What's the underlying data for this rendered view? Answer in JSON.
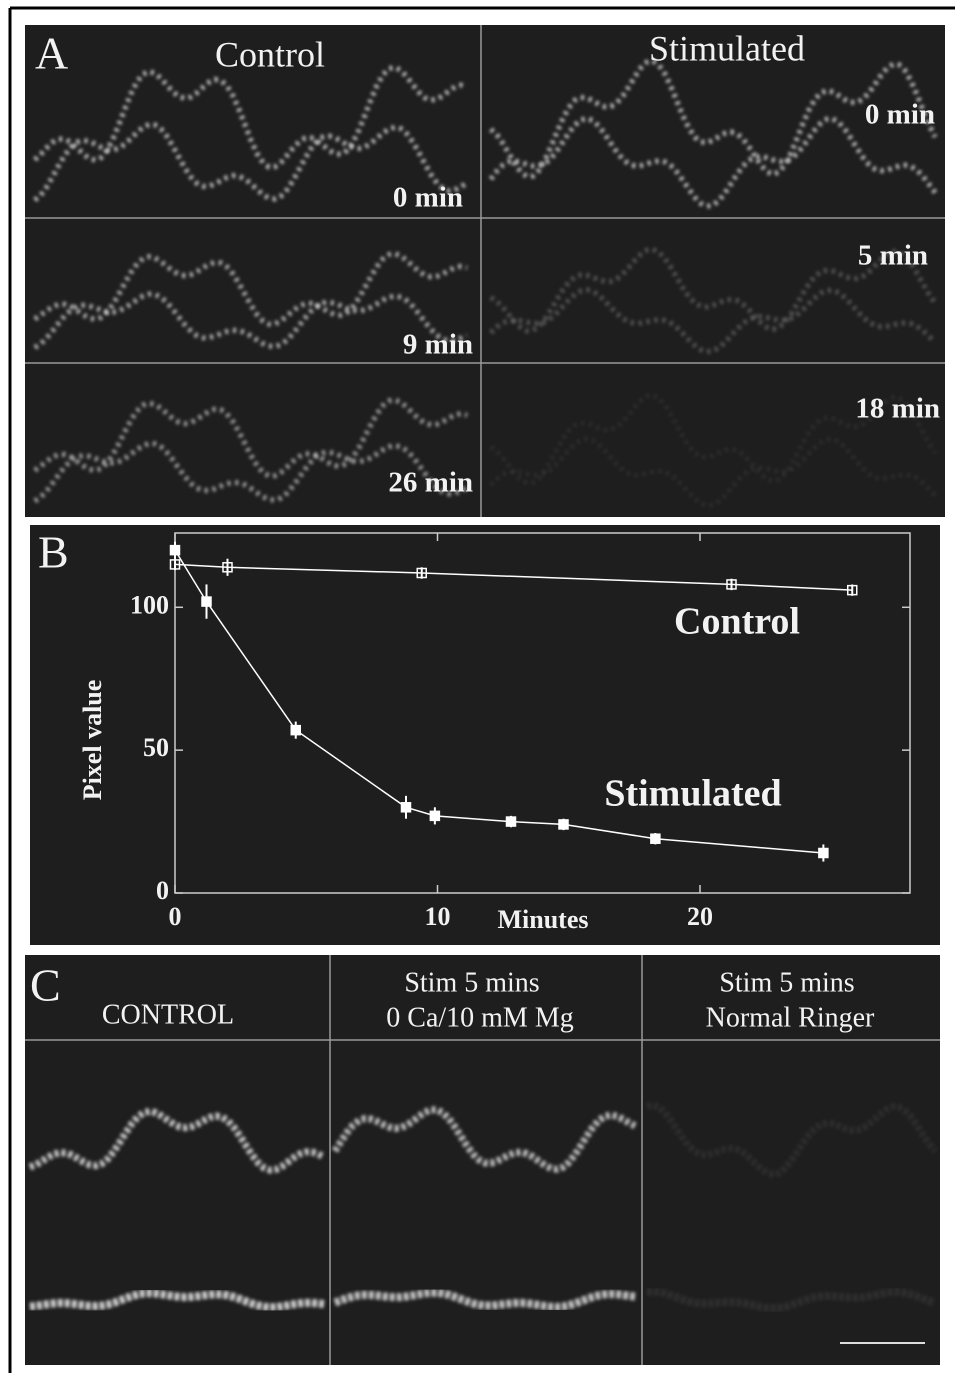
{
  "panel_a": {
    "label": "A",
    "columns": [
      "Control",
      "Stimulated"
    ],
    "control_times": [
      "0 min",
      "9 min",
      "26 min"
    ],
    "stimulated_times": [
      "0 min",
      "5 min",
      "18 min"
    ]
  },
  "chart_data": {
    "type": "line",
    "panel_label": "B",
    "x_label": "Minutes",
    "y_label": "Pixel value",
    "xlim": [
      0,
      28
    ],
    "ylim": [
      0,
      126
    ],
    "xticks": [
      0,
      10,
      20
    ],
    "yticks": [
      0,
      50,
      100
    ],
    "grid": false,
    "series": [
      {
        "name": "Control",
        "color": "#ffffff",
        "x": [
          0,
          2.0,
          9.4,
          21.2,
          25.8
        ],
        "values": [
          115,
          114,
          112,
          108,
          106
        ],
        "errors": [
          2,
          3,
          2,
          2,
          2
        ]
      },
      {
        "name": "Stimulated",
        "color": "#ffffff",
        "x": [
          0,
          1.2,
          4.6,
          8.8,
          9.9,
          12.8,
          14.8,
          18.3,
          24.7
        ],
        "values": [
          120,
          102,
          57,
          30,
          27,
          25,
          24,
          19,
          14
        ],
        "errors": [
          3,
          6,
          3,
          4,
          3,
          2,
          2,
          2,
          3
        ]
      }
    ]
  },
  "panel_c": {
    "label": "C",
    "columns": [
      [
        "CONTROL"
      ],
      [
        "Stim 5 mins",
        "0 Ca/10 mM Mg"
      ],
      [
        "Stim 5 mins",
        "Normal Ringer"
      ]
    ]
  }
}
